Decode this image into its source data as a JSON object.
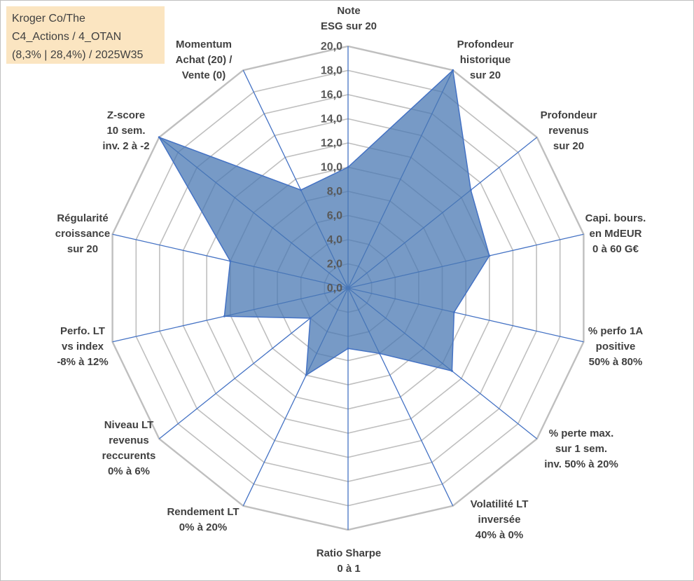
{
  "title_box": {
    "line1": "Kroger Co/The",
    "line2": "C4_Actions / 4_OTAN",
    "line3": "(8,3% | 28,4%) / 2025W35"
  },
  "chart_data": {
    "type": "radar",
    "rlim": [
      0,
      20
    ],
    "ticks": [
      "0,0",
      "2,0",
      "4,0",
      "6,0",
      "8,0",
      "10,0",
      "12,0",
      "14,0",
      "16,0",
      "18,0",
      "20,0"
    ],
    "grid": true,
    "categories": [
      [
        "Note",
        "ESG sur 20"
      ],
      [
        "Profondeur",
        "historique",
        "sur 20"
      ],
      [
        "Profondeur",
        "revenus",
        "sur 20"
      ],
      [
        "Capi. bours.",
        "en MdEUR",
        "0 à 60 G€"
      ],
      [
        "% perfo 1A",
        "positive",
        "50% à 80%"
      ],
      [
        "% perte max.",
        "sur 1 sem.",
        "inv. 50% à 20%"
      ],
      [
        "Volatilité LT",
        "inversée",
        "40% à 0%"
      ],
      [
        "Ratio Sharpe",
        "0 à 1"
      ],
      [
        "Rendement LT",
        "0% à 20%"
      ],
      [
        "Niveau LT",
        "revenus",
        "reccurents",
        "0% à 6%"
      ],
      [
        "Perfo. LT",
        "vs index",
        "-8% à 12%"
      ],
      [
        "Régularité",
        "croissance",
        "sur 20"
      ],
      [
        "Z-score",
        "10 sem.",
        "inv. 2 à -2"
      ],
      [
        "Momentum",
        "Achat (20) /",
        "Vente (0)"
      ]
    ],
    "values": [
      10,
      20,
      13,
      12,
      9,
      11,
      6,
      5,
      8,
      4,
      10.5,
      10,
      20,
      9
    ],
    "colors": {
      "fill": "#4a78b3",
      "stroke": "#4472c4",
      "grid": "#bfbfbf",
      "spoke": "#4472c4"
    }
  }
}
